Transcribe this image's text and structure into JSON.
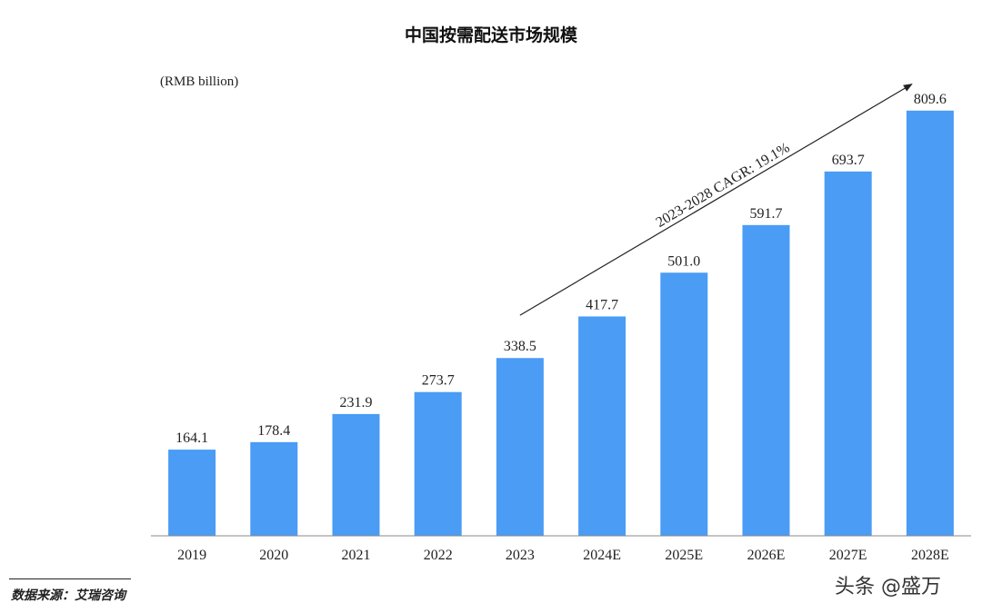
{
  "chart_data": {
    "type": "bar",
    "title": "中国按需配送市场规模",
    "unit_label": "(RMB billion)",
    "categories": [
      "2019",
      "2020",
      "2021",
      "2022",
      "2023",
      "2024E",
      "2025E",
      "2026E",
      "2027E",
      "2028E"
    ],
    "values": [
      164.1,
      178.4,
      231.9,
      273.7,
      338.5,
      417.7,
      501.0,
      591.7,
      693.7,
      809.6
    ],
    "value_labels": [
      "164.1",
      "178.4",
      "231.9",
      "273.7",
      "338.5",
      "417.7",
      "501.0",
      "591.7",
      "693.7",
      "809.6"
    ],
    "ylim": [
      0,
      830
    ],
    "grid": false,
    "bar_color": "#4a9cf5",
    "annotation": {
      "text": "2023-2028 CAGR: 19.1%",
      "from_category": "2023",
      "to_category": "2028E",
      "from_value": 420,
      "to_value": 860
    }
  },
  "footer": {
    "source": "数据来源：艾瑞咨询",
    "watermark": "头条 @盛万"
  }
}
